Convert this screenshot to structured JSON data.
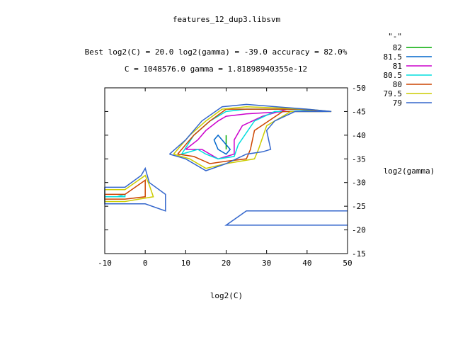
{
  "chart_data": {
    "type": "contour",
    "title": "features_12_dup3.libsvm",
    "subtitle_1": "Best log2(C) = 20.0  log2(gamma) = -39.0  accuracy = 82.0%",
    "subtitle_2": "C = 1048576.0  gamma = 1.81898940355e-12",
    "xlabel": "log2(C)",
    "ylabel": "log2(gamma)",
    "xlim": [
      -10,
      50
    ],
    "ylim": [
      -15,
      -50
    ],
    "x_ticks": [
      -10,
      0,
      10,
      20,
      30,
      40,
      50
    ],
    "y_ticks": [
      -50,
      -45,
      -40,
      -35,
      -30,
      -25,
      -20,
      -15
    ],
    "legend_title": "\"-\"",
    "legend_placement": "right",
    "grid": false,
    "series": [
      {
        "name": "82",
        "color": "#00aa00",
        "lines": [
          [
            [
              20,
              -40
            ],
            [
              20,
              -37
            ]
          ]
        ]
      },
      {
        "name": "81.5",
        "color": "#0066cc",
        "lines": [
          [
            [
              20,
              -38
            ],
            [
              18,
              -40
            ],
            [
              17,
              -39
            ],
            [
              18,
              -37
            ],
            [
              20,
              -36
            ],
            [
              21,
              -37
            ],
            [
              20,
              -38
            ]
          ]
        ]
      },
      {
        "name": "81",
        "color": "#cc00cc",
        "lines": [
          [
            [
              10,
              -37
            ],
            [
              13,
              -39
            ],
            [
              15,
              -41
            ],
            [
              18,
              -43
            ],
            [
              20,
              -44
            ],
            [
              25,
              -44.5
            ],
            [
              35,
              -45
            ],
            [
              44,
              -45
            ],
            [
              35,
              -45.5
            ],
            [
              29,
              -44
            ],
            [
              24,
              -42
            ],
            [
              22,
              -39
            ],
            [
              22,
              -36
            ],
            [
              18,
              -35
            ],
            [
              14,
              -37
            ],
            [
              11,
              -37
            ],
            [
              10,
              -37
            ]
          ]
        ]
      },
      {
        "name": "80.5",
        "color": "#00dddd",
        "lines": [
          [
            [
              9,
              -36
            ],
            [
              12,
              -40
            ],
            [
              16,
              -43
            ],
            [
              20,
              -45
            ],
            [
              25,
              -45.5
            ],
            [
              35,
              -45.5
            ],
            [
              45,
              -45
            ],
            [
              32,
              -45
            ],
            [
              27,
              -43
            ],
            [
              23,
              -38
            ],
            [
              22,
              -35.5
            ],
            [
              18,
              -35
            ],
            [
              15,
              -36
            ],
            [
              13,
              -37
            ],
            [
              9,
              -36
            ]
          ],
          [
            [
              -10,
              -27
            ],
            [
              -7,
              -27
            ],
            [
              -5,
              -27.5
            ],
            [
              -5,
              -27
            ],
            [
              -10,
              -27
            ]
          ]
        ]
      },
      {
        "name": "80",
        "color": "#cc4400",
        "lines": [
          [
            [
              8,
              -36
            ],
            [
              12,
              -40
            ],
            [
              16,
              -43
            ],
            [
              20,
              -45.5
            ],
            [
              25,
              -45.5
            ],
            [
              38,
              -45.5
            ],
            [
              46,
              -45
            ],
            [
              34,
              -45
            ],
            [
              27,
              -41
            ],
            [
              26,
              -37
            ],
            [
              25,
              -35
            ],
            [
              20,
              -34.5
            ],
            [
              16,
              -34
            ],
            [
              12,
              -35.5
            ],
            [
              8,
              -36
            ]
          ],
          [
            [
              -10,
              -27.5
            ],
            [
              -5,
              -27.5
            ],
            [
              0,
              -30.5
            ],
            [
              0,
              -27
            ],
            [
              -5,
              -26.5
            ],
            [
              -10,
              -26.5
            ],
            [
              -10,
              -27.5
            ]
          ]
        ]
      },
      {
        "name": "79.5",
        "color": "#cccc00",
        "lines": [
          [
            [
              7,
              -36
            ],
            [
              11,
              -40
            ],
            [
              15,
              -43
            ],
            [
              19,
              -45.5
            ],
            [
              25,
              -46
            ],
            [
              40,
              -45.5
            ],
            [
              46,
              -45
            ],
            [
              36,
              -45
            ],
            [
              30,
              -42
            ],
            [
              28,
              -37
            ],
            [
              27,
              -35
            ],
            [
              20,
              -34
            ],
            [
              15,
              -33
            ],
            [
              11,
              -35
            ],
            [
              7,
              -36
            ]
          ],
          [
            [
              -10,
              -28.5
            ],
            [
              -5,
              -28.5
            ],
            [
              0,
              -31.5
            ],
            [
              1,
              -29.5
            ],
            [
              2,
              -27
            ],
            [
              -5,
              -26
            ],
            [
              -10,
              -26
            ],
            [
              -10,
              -28.5
            ]
          ]
        ]
      },
      {
        "name": "79",
        "color": "#3366cc",
        "lines": [
          [
            [
              6,
              -36
            ],
            [
              10,
              -39
            ],
            [
              14,
              -43
            ],
            [
              19,
              -46
            ],
            [
              25,
              -46.5
            ],
            [
              40,
              -45.5
            ],
            [
              46,
              -45
            ],
            [
              37,
              -45
            ],
            [
              32,
              -43
            ],
            [
              30,
              -41
            ],
            [
              31,
              -37
            ],
            [
              29,
              -36.5
            ],
            [
              25,
              -36
            ],
            [
              20,
              -34
            ],
            [
              15,
              -32.5
            ],
            [
              10,
              -35
            ],
            [
              6,
              -36
            ]
          ],
          [
            [
              -10,
              -29
            ],
            [
              -5,
              -29
            ],
            [
              -1,
              -31.5
            ],
            [
              0,
              -33
            ],
            [
              1,
              -30
            ],
            [
              5,
              -27.5
            ],
            [
              5,
              -24
            ],
            [
              0,
              -25.5
            ],
            [
              -5,
              -25.5
            ],
            [
              -10,
              -25.5
            ],
            [
              -10,
              -29
            ]
          ],
          [
            [
              50,
              -24
            ],
            [
              25,
              -24
            ],
            [
              20,
              -21
            ],
            [
              50,
              -21
            ]
          ]
        ]
      }
    ]
  }
}
